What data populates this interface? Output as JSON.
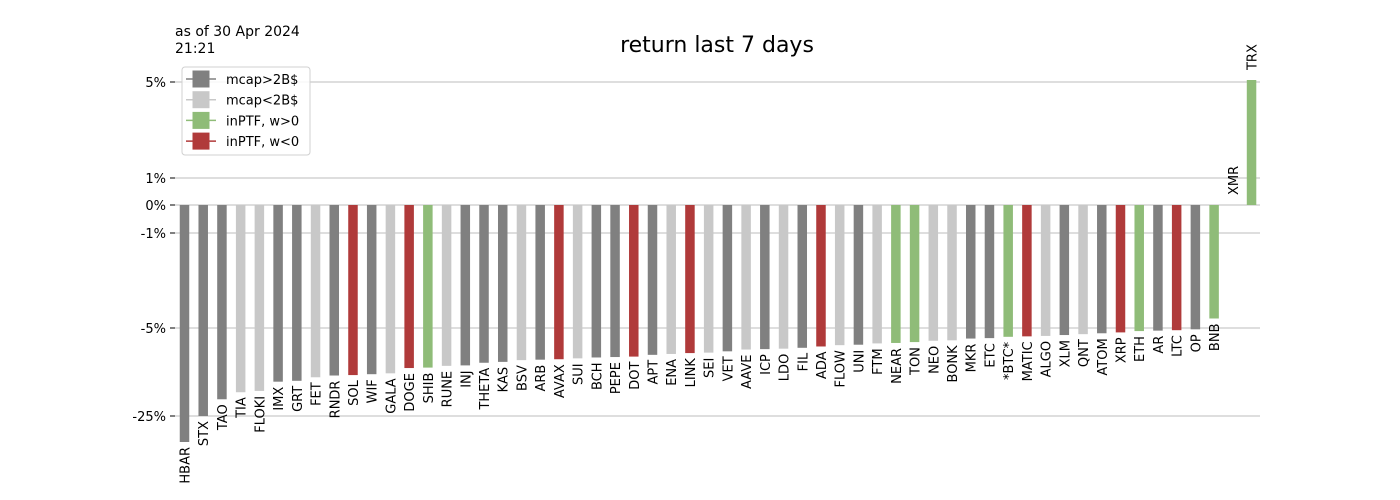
{
  "as_of_line1": "as of 30 Apr 2024",
  "as_of_line2": "21:21",
  "colors": {
    "mcap_gt_2b": "#808080",
    "mcap_lt_2b": "#c8c8c8",
    "inptf_pos": "#8fbc78",
    "inptf_neg": "#b03a3a",
    "grid": "#bdbdbd"
  },
  "chart_data": {
    "type": "bar",
    "title": "return last 7 days",
    "xlabel": "",
    "ylabel": "",
    "y_scale": "nonlinear (piecewise, as labelled)",
    "yticks": [
      {
        "value": 5,
        "label": "5%"
      },
      {
        "value": 1,
        "label": "1%"
      },
      {
        "value": 0,
        "label": "0%"
      },
      {
        "value": -1,
        "label": "-1%"
      },
      {
        "value": -5,
        "label": "-5%"
      },
      {
        "value": -25,
        "label": "-25%"
      }
    ],
    "grid": true,
    "legend_position": "top-left",
    "legend": [
      {
        "key": "gt2b",
        "label": "mcap>2B$"
      },
      {
        "key": "lt2b",
        "label": "mcap<2B$"
      },
      {
        "key": "pos",
        "label": "inPTF, w>0"
      },
      {
        "key": "neg",
        "label": "inPTF, w<0"
      }
    ],
    "categories": [
      "HBAR",
      "STX",
      "TAO",
      "TIA",
      "FLOKI",
      "IMX",
      "GRT",
      "FET",
      "RNDR",
      "SOL",
      "WIF",
      "GALA",
      "DOGE",
      "SHIB",
      "RUNE",
      "INJ",
      "THETA",
      "KAS",
      "BSV",
      "ARB",
      "AVAX",
      "SUI",
      "BCH",
      "PEPE",
      "DOT",
      "APT",
      "ENA",
      "LINK",
      "SEI",
      "VET",
      "AAVE",
      "ICP",
      "LDO",
      "FIL",
      "ADA",
      "FLOW",
      "UNI",
      "FTM",
      "NEAR",
      "TON",
      "NEO",
      "BONK",
      "MKR",
      "ETC",
      "*BTC*",
      "MATIC",
      "ALGO",
      "XLM",
      "QNT",
      "ATOM",
      "XRP",
      "ETH",
      "AR",
      "LTC",
      "OP",
      "BNB",
      "XMR",
      "TRX"
    ],
    "groups": [
      "gt2b",
      "gt2b",
      "gt2b",
      "lt2b",
      "lt2b",
      "gt2b",
      "gt2b",
      "lt2b",
      "gt2b",
      "neg",
      "gt2b",
      "lt2b",
      "neg",
      "pos",
      "lt2b",
      "gt2b",
      "gt2b",
      "gt2b",
      "lt2b",
      "gt2b",
      "neg",
      "lt2b",
      "gt2b",
      "gt2b",
      "neg",
      "gt2b",
      "lt2b",
      "neg",
      "lt2b",
      "gt2b",
      "lt2b",
      "gt2b",
      "lt2b",
      "gt2b",
      "neg",
      "lt2b",
      "gt2b",
      "lt2b",
      "pos",
      "pos",
      "lt2b",
      "lt2b",
      "gt2b",
      "gt2b",
      "pos",
      "neg",
      "lt2b",
      "gt2b",
      "lt2b",
      "gt2b",
      "neg",
      "pos",
      "gt2b",
      "neg",
      "gt2b",
      "pos",
      "gt2b",
      "pos"
    ],
    "values": [
      -40.0,
      -25.0,
      -21.2,
      -19.6,
      -19.3,
      -17.2,
      -17.0,
      -16.2,
      -15.8,
      -15.7,
      -15.5,
      -15.3,
      -14.1,
      -14.0,
      -13.6,
      -13.5,
      -12.9,
      -12.7,
      -12.3,
      -12.2,
      -12.1,
      -11.9,
      -11.7,
      -11.6,
      -11.5,
      -11.1,
      -10.9,
      -10.7,
      -10.6,
      -10.3,
      -9.9,
      -9.8,
      -9.7,
      -9.5,
      -9.2,
      -8.9,
      -8.8,
      -8.5,
      -8.4,
      -8.2,
      -7.9,
      -7.8,
      -7.4,
      -7.3,
      -7.0,
      -6.9,
      -6.8,
      -6.6,
      -6.4,
      -6.2,
      -6.0,
      -5.7,
      -5.6,
      -5.5,
      -5.3,
      -4.6,
      0.0,
      5.2
    ]
  }
}
